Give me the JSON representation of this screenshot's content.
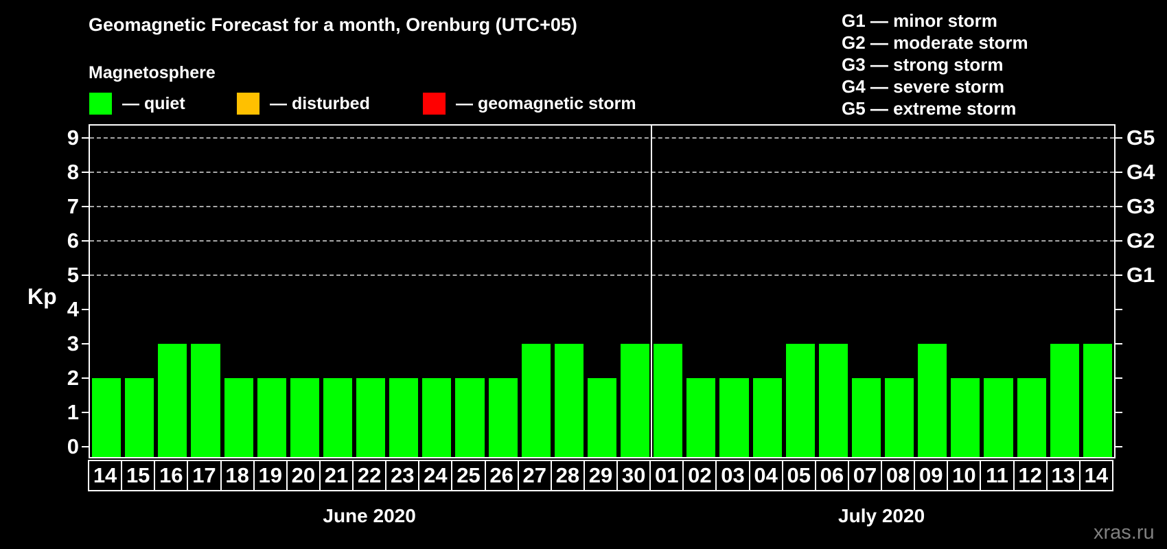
{
  "title": "Geomagnetic Forecast for a month, Orenburg (UTC+05)",
  "subtitle": "Magnetosphere",
  "legend": {
    "items": [
      {
        "name": "quiet",
        "label": "— quiet",
        "color": "#00ff00"
      },
      {
        "name": "disturbed",
        "label": "— disturbed",
        "color": "#ffc000"
      },
      {
        "name": "geomagnetic-storm",
        "label": "— geomagnetic storm",
        "color": "#ff0000"
      }
    ]
  },
  "g_scale_legend": [
    "G1 — minor storm",
    "G2 — moderate storm",
    "G3 — strong storm",
    "G4 — severe storm",
    "G5 — extreme storm"
  ],
  "watermark": "xras.ru",
  "chart_data": {
    "type": "bar",
    "title": "Geomagnetic Forecast for a month, Orenburg (UTC+05)",
    "ylabel": "Kp",
    "ylim": [
      0,
      9
    ],
    "yticks": [
      0,
      1,
      2,
      3,
      4,
      5,
      6,
      7,
      8,
      9
    ],
    "grid": "dashed horizontal lines at Kp 5–9",
    "grid_levels": [
      5,
      6,
      7,
      8,
      9
    ],
    "right_axis_labels": [
      {
        "kp": 5,
        "label": "G1"
      },
      {
        "kp": 6,
        "label": "G2"
      },
      {
        "kp": 7,
        "label": "G3"
      },
      {
        "kp": 8,
        "label": "G4"
      },
      {
        "kp": 9,
        "label": "G5"
      }
    ],
    "bar_color": "#00ff00",
    "bar_status": "quiet",
    "groups": [
      {
        "label": "June 2020",
        "categories": [
          "14",
          "15",
          "16",
          "17",
          "18",
          "19",
          "20",
          "21",
          "22",
          "23",
          "24",
          "25",
          "26",
          "27",
          "28",
          "29",
          "30"
        ],
        "values": [
          2,
          2,
          3,
          3,
          2,
          2,
          2,
          2,
          2,
          2,
          2,
          2,
          2,
          3,
          3,
          2,
          3
        ]
      },
      {
        "label": "July 2020",
        "categories": [
          "01",
          "02",
          "03",
          "04",
          "05",
          "06",
          "07",
          "08",
          "09",
          "10",
          "11",
          "12",
          "13",
          "14"
        ],
        "values": [
          3,
          2,
          2,
          2,
          3,
          3,
          2,
          2,
          3,
          2,
          2,
          2,
          3,
          3
        ]
      }
    ]
  }
}
